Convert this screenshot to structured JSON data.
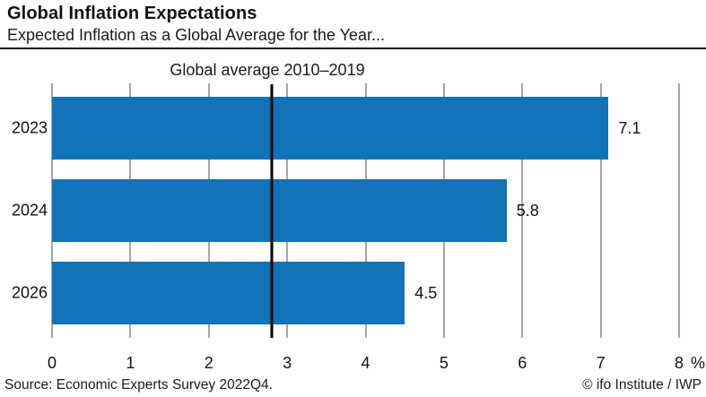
{
  "header": {
    "title": "Global Inflation Expectations",
    "subtitle": "Expected Inflation as a Global Average for the Year..."
  },
  "chart_data": {
    "type": "bar",
    "orientation": "horizontal",
    "title": "Global Inflation Expectations",
    "subtitle": "Expected Inflation as a Global Average for the Year...",
    "categories": [
      "2023",
      "2024",
      "2026"
    ],
    "values": [
      7.1,
      5.8,
      4.5
    ],
    "value_labels": [
      "7.1",
      "5.8",
      "4.5"
    ],
    "xlim": [
      0,
      8
    ],
    "x_ticks": [
      0,
      1,
      2,
      3,
      4,
      5,
      6,
      7,
      8
    ],
    "x_unit": "%",
    "grid": "vertical",
    "legend": "none",
    "reference_line": {
      "value": 2.8,
      "label": "Global average 2010–2019"
    },
    "bar_color": "#1273b7"
  },
  "footer": {
    "source": "Source: Economic Experts Survey 2022Q4.",
    "copyright": "© ifo Institute / IWP"
  },
  "colors": {
    "bar": "#1273b7",
    "gridline": "#4d4d4d",
    "reference_line": "#000000",
    "header_rule": "#111111",
    "text": "#1a1a1a",
    "background": "#ffffff"
  }
}
